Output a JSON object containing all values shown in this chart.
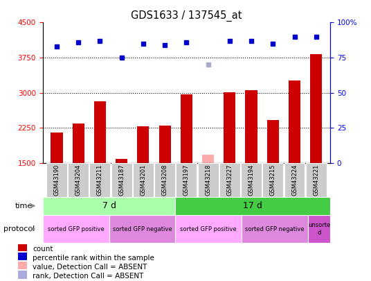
{
  "title": "GDS1633 / 137545_at",
  "samples": [
    "GSM43190",
    "GSM43204",
    "GSM43211",
    "GSM43187",
    "GSM43201",
    "GSM43208",
    "GSM43197",
    "GSM43218",
    "GSM43227",
    "GSM43194",
    "GSM43215",
    "GSM43224",
    "GSM43221"
  ],
  "counts": [
    2150,
    2350,
    2820,
    1590,
    2280,
    2300,
    2960,
    1670,
    3010,
    3060,
    2420,
    3260,
    3820
  ],
  "counts_absent": [
    false,
    false,
    false,
    false,
    false,
    false,
    false,
    true,
    false,
    false,
    false,
    false,
    false
  ],
  "percentile_ranks": [
    83,
    86,
    87,
    75,
    85,
    84,
    86,
    70,
    87,
    87,
    85,
    90,
    90
  ],
  "rank_absent": [
    false,
    false,
    false,
    false,
    false,
    false,
    false,
    true,
    false,
    false,
    false,
    false,
    false
  ],
  "ylim_left": [
    1500,
    4500
  ],
  "ylim_right": [
    0,
    100
  ],
  "yticks_left": [
    1500,
    2250,
    3000,
    3750,
    4500
  ],
  "yticks_right": [
    0,
    25,
    50,
    75,
    100
  ],
  "ytick_labels_right": [
    "0",
    "25",
    "50",
    "75",
    "100%"
  ],
  "bar_color": "#cc0000",
  "bar_absent_color": "#ffaaaa",
  "dot_color": "#0000cc",
  "dot_absent_color": "#aaaacc",
  "grid_lines": [
    2250,
    3000,
    3750
  ],
  "time_groups": [
    {
      "label": "7 d",
      "start": 0,
      "end": 6,
      "color": "#aaffaa"
    },
    {
      "label": "17 d",
      "start": 6,
      "end": 13,
      "color": "#44cc44"
    }
  ],
  "protocol_groups": [
    {
      "label": "sorted GFP positive",
      "start": 0,
      "end": 3,
      "color": "#ffaaff"
    },
    {
      "label": "sorted GFP negative",
      "start": 3,
      "end": 6,
      "color": "#dd88dd"
    },
    {
      "label": "sorted GFP positive",
      "start": 6,
      "end": 9,
      "color": "#ffaaff"
    },
    {
      "label": "sorted GFP negative",
      "start": 9,
      "end": 12,
      "color": "#dd88dd"
    },
    {
      "label": "unsorte\nd",
      "start": 12,
      "end": 13,
      "color": "#cc55cc"
    }
  ],
  "legend_items": [
    {
      "label": "count",
      "color": "#cc0000"
    },
    {
      "label": "percentile rank within the sample",
      "color": "#0000cc"
    },
    {
      "label": "value, Detection Call = ABSENT",
      "color": "#ffaaaa"
    },
    {
      "label": "rank, Detection Call = ABSENT",
      "color": "#aaaadd"
    }
  ]
}
